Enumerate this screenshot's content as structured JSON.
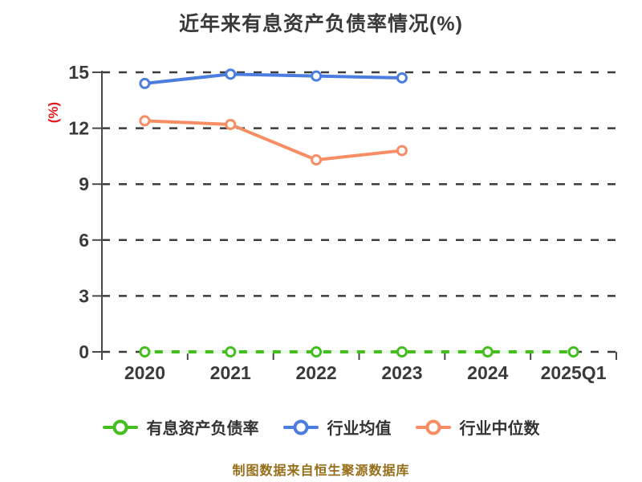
{
  "chart_data": {
    "type": "line",
    "title": "近年来有息资产负债率情况(%)",
    "ylabel": "(%)",
    "xlabel": "",
    "categories": [
      "2020",
      "2021",
      "2022",
      "2023",
      "2024",
      "2025Q1"
    ],
    "series": [
      {
        "name": "有息资产负债率",
        "color": "#44BE1E",
        "values": [
          0,
          0,
          0,
          0,
          0,
          0
        ]
      },
      {
        "name": "行业均值",
        "color": "#4A7DDE",
        "values": [
          14.4,
          14.9,
          14.8,
          14.7,
          null,
          null
        ]
      },
      {
        "name": "行业中位数",
        "color": "#F78E63",
        "values": [
          12.4,
          12.2,
          10.3,
          10.8,
          null,
          null
        ]
      }
    ],
    "ylim": [
      0,
      15
    ],
    "yticks": [
      0,
      3,
      6,
      9,
      12,
      15
    ],
    "grid": "horizontal-dashed",
    "legend_position": "bottom"
  },
  "footer": {
    "text": "制图数据来自恒生聚源数据库"
  },
  "colors": {
    "background": "#FFFFFF",
    "title_text": "#3A3A3A",
    "tick_text": "#3A3A3A",
    "axis": "#4A4A4A",
    "gridline": "#3C3C3C",
    "ylabel_red": "#E41A1A",
    "footer_text": "#966E19",
    "marker_fill": "#FFFFFF"
  }
}
